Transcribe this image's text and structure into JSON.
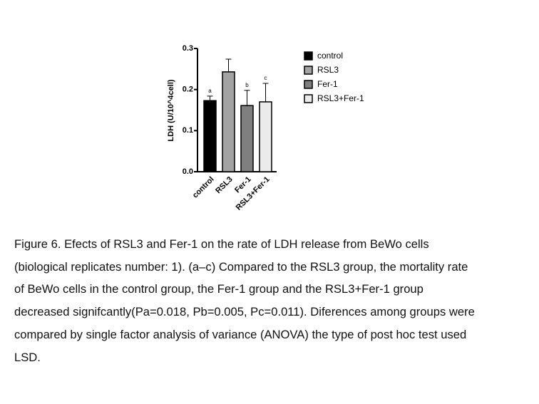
{
  "chart_data": {
    "type": "bar",
    "y_label": "LDH  (U/10^4cell)",
    "categories": [
      "control",
      "RSL3",
      "Fer-1",
      "RSL3+Fer-1"
    ],
    "values": [
      0.173,
      0.243,
      0.161,
      0.17
    ],
    "errors": [
      0.011,
      0.031,
      0.037,
      0.045
    ],
    "annotations": [
      "a",
      null,
      "b",
      "c"
    ],
    "colors": [
      "#000000",
      "#a3a3a3",
      "#7f7f7f",
      "#ebebeb"
    ],
    "ylim": [
      0,
      0.3
    ],
    "yticks": [
      {
        "value": 0,
        "label": "0.0"
      },
      0.1,
      0.2,
      0.3
    ]
  },
  "caption": [
    "Figure 6. Efects of RSL3 and Fer-1 on the rate of LDH release from BeWo cells",
    "(biological replicates number: 1). (a–c) Compared to the RSL3 group, the mortality rate",
    "of BeWo cells in the control group, the Fer-1 group and the RSL3+Fer-1 group",
    "decreased signifcantly(Pa=0.018, Pb=0.005, Pc=0.011). Diferences among groups were",
    "compared by single factor analysis of variance (ANOVA) the type of post hoc test used",
    "LSD."
  ]
}
